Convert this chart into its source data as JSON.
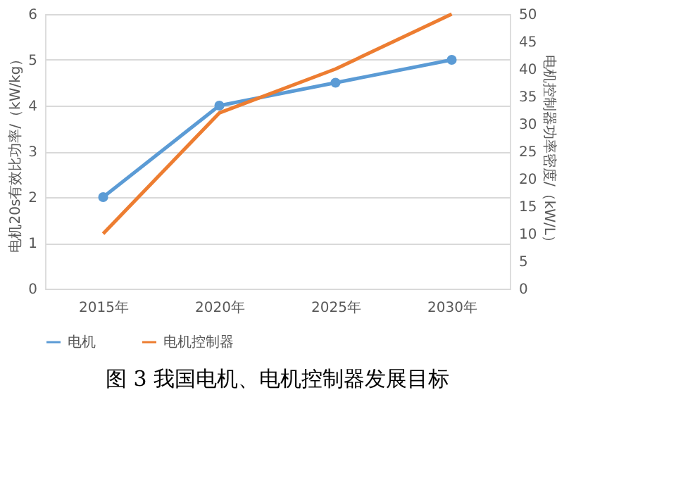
{
  "chart_data": {
    "type": "line",
    "title": "图 3 我国电机、电机控制器发展目标",
    "categories": [
      "2015年",
      "2020年",
      "2025年",
      "2030年"
    ],
    "ylabel": "电机20s有效比功率/（kW/kg）",
    "y2label": "电机控制器功率密度/（kW/L）",
    "series": [
      {
        "name": "电机",
        "color": "#5b9bd5",
        "values": [
          2,
          4,
          4.5,
          5
        ],
        "marker": "circle"
      },
      {
        "name": "电机控制器",
        "color": "#ed7d31",
        "values": [
          10,
          32,
          40,
          50
        ],
        "axis": "y2",
        "marker": "none"
      }
    ],
    "ylim": [
      0,
      6
    ],
    "yticks": [
      0,
      1,
      2,
      3,
      4,
      5,
      6
    ],
    "y2lim": [
      0,
      50
    ],
    "y2ticks": [
      0,
      5,
      10,
      15,
      20,
      25,
      30,
      35,
      40,
      45,
      50
    ],
    "grid": "y",
    "legend": "bottom"
  }
}
